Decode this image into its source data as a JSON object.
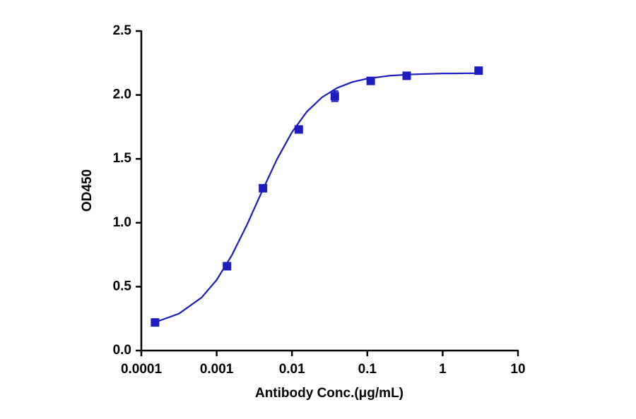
{
  "chart_data": {
    "type": "scatter",
    "xlabel": "Antibody Conc.(μg/mL)",
    "ylabel": "OD450",
    "xscale": "log",
    "color": "#1c1cc0",
    "xlim": [
      0.0001,
      10
    ],
    "xticks": [
      0.0001,
      0.001,
      0.01,
      0.1,
      1,
      10
    ],
    "ylim": [
      0,
      2.5
    ],
    "yticks": [
      {
        "value": 0,
        "label": "0.0"
      },
      {
        "value": 0.5,
        "label": "0.5"
      },
      {
        "value": 1,
        "label": "1.0"
      },
      {
        "value": 1.5,
        "label": "1.5"
      },
      {
        "value": 2,
        "label": "2.0"
      },
      {
        "value": 2.5,
        "label": "2.5"
      }
    ],
    "points": {
      "x": [
        0.000152,
        0.00137,
        0.00412,
        0.0123,
        0.037,
        0.111,
        0.333,
        3
      ],
      "values": [
        0.22,
        0.66,
        1.27,
        1.73,
        1.99,
        2.11,
        2.15,
        2.19
      ],
      "errors": [
        0.01,
        0.01,
        0.02,
        0.02,
        0.04,
        0.01,
        0.01,
        0.01
      ]
    },
    "curve": {
      "x": [
        0.000158,
        0.000316,
        0.000631,
        0.001,
        0.00158,
        0.00251,
        0.00398,
        0.00631,
        0.01,
        0.0158,
        0.0251,
        0.0398,
        0.0631,
        0.1,
        0.2,
        0.398,
        1,
        3
      ],
      "values": [
        0.225,
        0.289,
        0.415,
        0.553,
        0.743,
        0.981,
        1.243,
        1.496,
        1.709,
        1.87,
        1.982,
        2.055,
        2.101,
        2.128,
        2.151,
        2.161,
        2.168,
        2.17
      ]
    }
  }
}
